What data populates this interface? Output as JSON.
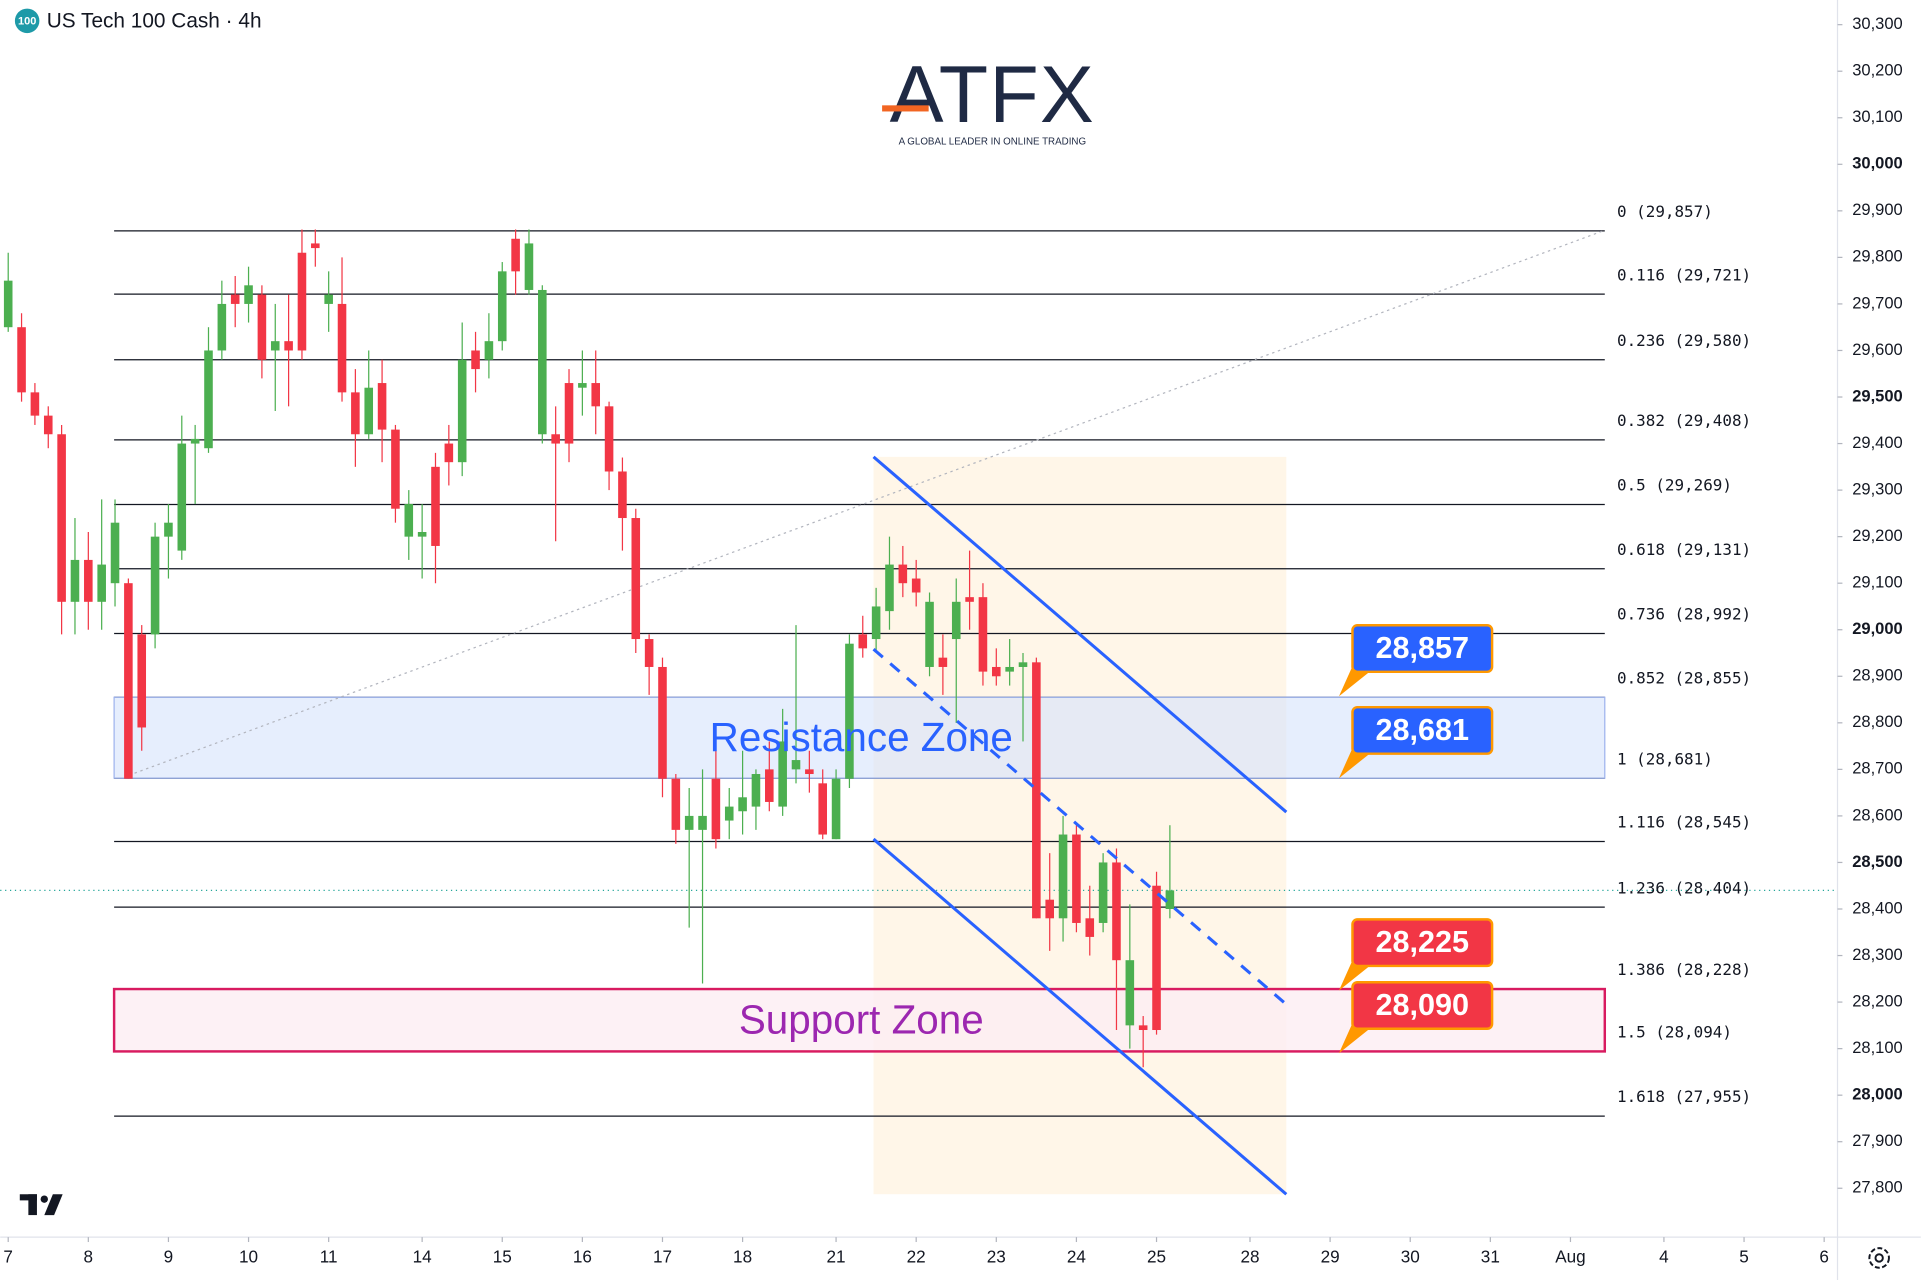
{
  "brand": {
    "name": "ATFX",
    "tagline": "A GLOBAL LEADER IN ONLINE TRADING"
  },
  "chart_data": {
    "type": "candlestick",
    "title": "US Tech 100 Cash · 4h",
    "symbol_badge": "100",
    "up_color": "#4caf50",
    "down_color": "#f23645",
    "open": [
      29650,
      29650,
      29510,
      29460,
      29420,
      29060,
      29150,
      29060,
      29100,
      29100,
      28990,
      28990,
      29200,
      29170,
      29400,
      29390,
      29600,
      29720,
      29700,
      29720,
      29600,
      29620,
      29810,
      29830,
      29700,
      29700,
      29510,
      29420,
      29530,
      29430,
      29200,
      29200,
      29350,
      29400,
      29360,
      29600,
      29580,
      29620,
      29840,
      29730,
      29420,
      29420,
      29530,
      29520,
      29530,
      29480,
      29340,
      29240,
      28980,
      28920,
      28680,
      28570,
      28570,
      28680,
      28590,
      28610,
      28620,
      28700,
      28620,
      28700,
      28700,
      28670,
      28550,
      28680,
      28990,
      28980,
      29040,
      29140,
      29110,
      28920,
      28940,
      28980,
      29070,
      29070,
      28920,
      28910,
      28920,
      28930,
      28420,
      28380,
      28560,
      28380,
      28370,
      28500,
      28150,
      28150,
      28450,
      28400
    ],
    "high": [
      29810,
      29680,
      29530,
      29480,
      29440,
      29240,
      29210,
      29280,
      29280,
      29110,
      29010,
      29230,
      29270,
      29460,
      29440,
      29650,
      29750,
      29760,
      29780,
      29740,
      29700,
      29720,
      29860,
      29860,
      29770,
      29800,
      29560,
      29600,
      29580,
      29440,
      29300,
      29270,
      29380,
      29440,
      29660,
      29640,
      29680,
      29790,
      29860,
      29860,
      29740,
      29480,
      29560,
      29600,
      29600,
      29490,
      29370,
      29260,
      28990,
      28940,
      28690,
      28660,
      28700,
      28780,
      28660,
      28740,
      28700,
      28760,
      28830,
      29010,
      28740,
      28700,
      28700,
      28990,
      29030,
      29090,
      29200,
      29180,
      29150,
      29080,
      28990,
      29110,
      29170,
      29100,
      28960,
      28980,
      28950,
      28940,
      28520,
      28600,
      28580,
      28450,
      28520,
      28530,
      28410,
      28170,
      28480,
      28580
    ],
    "low": [
      29640,
      29490,
      29440,
      29390,
      28990,
      28990,
      29000,
      29000,
      29050,
      28680,
      28740,
      28960,
      29110,
      29150,
      29270,
      29380,
      29580,
      29650,
      29660,
      29540,
      29470,
      29480,
      29580,
      29780,
      29640,
      29490,
      29350,
      29410,
      29360,
      29230,
      29150,
      29110,
      29100,
      29310,
      29330,
      29510,
      29540,
      29600,
      29720,
      29720,
      29400,
      29190,
      29360,
      29460,
      29420,
      29300,
      29170,
      28950,
      28860,
      28640,
      28540,
      28360,
      28240,
      28530,
      28550,
      28560,
      28570,
      28610,
      28600,
      28670,
      28650,
      28550,
      28550,
      28660,
      28940,
      28950,
      29000,
      29070,
      29050,
      28900,
      28860,
      28800,
      29000,
      28880,
      28880,
      28880,
      28760,
      28380,
      28310,
      28330,
      28350,
      28300,
      28350,
      28140,
      28100,
      28060,
      28130,
      28380
    ],
    "close": [
      29750,
      29510,
      29460,
      29420,
      29060,
      29150,
      29060,
      29140,
      29230,
      28680,
      28790,
      29200,
      29230,
      29400,
      29410,
      29600,
      29700,
      29700,
      29740,
      29580,
      29620,
      29600,
      29600,
      29820,
      29720,
      29510,
      29420,
      29520,
      29430,
      29260,
      29270,
      29210,
      29180,
      29360,
      29580,
      29560,
      29620,
      29770,
      29770,
      29830,
      29730,
      29400,
      29400,
      29530,
      29480,
      29340,
      29240,
      28980,
      28920,
      28680,
      28570,
      28600,
      28600,
      28550,
      28620,
      28640,
      28690,
      28630,
      28760,
      28720,
      28690,
      28560,
      28680,
      28970,
      28960,
      29050,
      29140,
      29100,
      29080,
      29060,
      28920,
      29060,
      29060,
      28910,
      28900,
      28920,
      28930,
      28380,
      28380,
      28560,
      28370,
      28340,
      28500,
      28290,
      28290,
      28140,
      28140,
      28440
    ],
    "xlim": [
      -0.6,
      137
    ],
    "xticks": [
      {
        "value": 0,
        "label": "7"
      },
      {
        "value": 6,
        "label": "8"
      },
      {
        "value": 12,
        "label": "9"
      },
      {
        "value": 18,
        "label": "10"
      },
      {
        "value": 24,
        "label": "11"
      },
      {
        "value": 31,
        "label": "14"
      },
      {
        "value": 37,
        "label": "15"
      },
      {
        "value": 43,
        "label": "16"
      },
      {
        "value": 49,
        "label": "17"
      },
      {
        "value": 55,
        "label": "18"
      },
      {
        "value": 62,
        "label": "21"
      },
      {
        "value": 68,
        "label": "22"
      },
      {
        "value": 74,
        "label": "23"
      },
      {
        "value": 80,
        "label": "24"
      },
      {
        "value": 86,
        "label": "25"
      },
      {
        "value": 93,
        "label": "28"
      },
      {
        "value": 99,
        "label": "29"
      },
      {
        "value": 105,
        "label": "30"
      },
      {
        "value": 111,
        "label": "31"
      },
      {
        "value": 117,
        "label": "Aug"
      },
      {
        "value": 124,
        "label": "4"
      },
      {
        "value": 130,
        "label": "5"
      },
      {
        "value": 136,
        "label": "6"
      }
    ],
    "ylim": [
      27695,
      30353
    ],
    "yticks": [
      {
        "value": 27800,
        "label": "27,800"
      },
      {
        "value": 27900,
        "label": "27,900"
      },
      {
        "value": 28000,
        "label": "28,000"
      },
      {
        "value": 28100,
        "label": "28,100"
      },
      {
        "value": 28200,
        "label": "28,200"
      },
      {
        "value": 28300,
        "label": "28,300"
      },
      {
        "value": 28400,
        "label": "28,400"
      },
      {
        "value": 28500,
        "label": "28,500"
      },
      {
        "value": 28600,
        "label": "28,600"
      },
      {
        "value": 28700,
        "label": "28,700"
      },
      {
        "value": 28800,
        "label": "28,800"
      },
      {
        "value": 28900,
        "label": "28,900"
      },
      {
        "value": 29000,
        "label": "29,000"
      },
      {
        "value": 29100,
        "label": "29,100"
      },
      {
        "value": 29200,
        "label": "29,200"
      },
      {
        "value": 29300,
        "label": "29,300"
      },
      {
        "value": 29400,
        "label": "29,400"
      },
      {
        "value": 29500,
        "label": "29,500"
      },
      {
        "value": 29600,
        "label": "29,600"
      },
      {
        "value": 29700,
        "label": "29,700"
      },
      {
        "value": 29800,
        "label": "29,800"
      },
      {
        "value": 29900,
        "label": "29,900"
      },
      {
        "value": 30000,
        "label": "30,000"
      },
      {
        "value": 30100,
        "label": "30,100"
      },
      {
        "value": 30200,
        "label": "30,200"
      },
      {
        "value": 30300,
        "label": "30,300"
      }
    ],
    "fib_levels": [
      {
        "value": 29857,
        "label": "0 (29,857)"
      },
      {
        "value": 29721,
        "label": "0.116 (29,721)"
      },
      {
        "value": 29580,
        "label": "0.236 (29,580)"
      },
      {
        "value": 29408,
        "label": "0.382 (29,408)"
      },
      {
        "value": 29269,
        "label": "0.5 (29,269)"
      },
      {
        "value": 29131,
        "label": "0.618 (29,131)"
      },
      {
        "value": 28992,
        "label": "0.736 (28,992)"
      },
      {
        "value": 28855,
        "label": "0.852 (28,855)"
      },
      {
        "value": 28681,
        "label": "1 (28,681)"
      },
      {
        "value": 28545,
        "label": "1.116 (28,545)"
      },
      {
        "value": 28404,
        "label": "1.236 (28,404)"
      },
      {
        "value": 28228,
        "label": "1.386 (28,228)"
      },
      {
        "value": 28094,
        "label": "1.5 (28,094)"
      },
      {
        "value": 27955,
        "label": "1.618 (27,955)"
      }
    ],
    "zones": [
      {
        "label": "Resistance Zone",
        "range": [
          28681,
          28855
        ],
        "color": "#2962ff"
      },
      {
        "label": "Support Zone",
        "range": [
          28094,
          28228
        ],
        "color": "#9c27b0"
      }
    ],
    "price_callouts": [
      {
        "value": 28857,
        "label": "28,857",
        "color": "#2962ff"
      },
      {
        "value": 28681,
        "label": "28,681",
        "color": "#2962ff"
      },
      {
        "value": 28225,
        "label": "28,225",
        "color": "#f23645"
      },
      {
        "value": 28090,
        "label": "28,090",
        "color": "#f23645"
      }
    ]
  }
}
